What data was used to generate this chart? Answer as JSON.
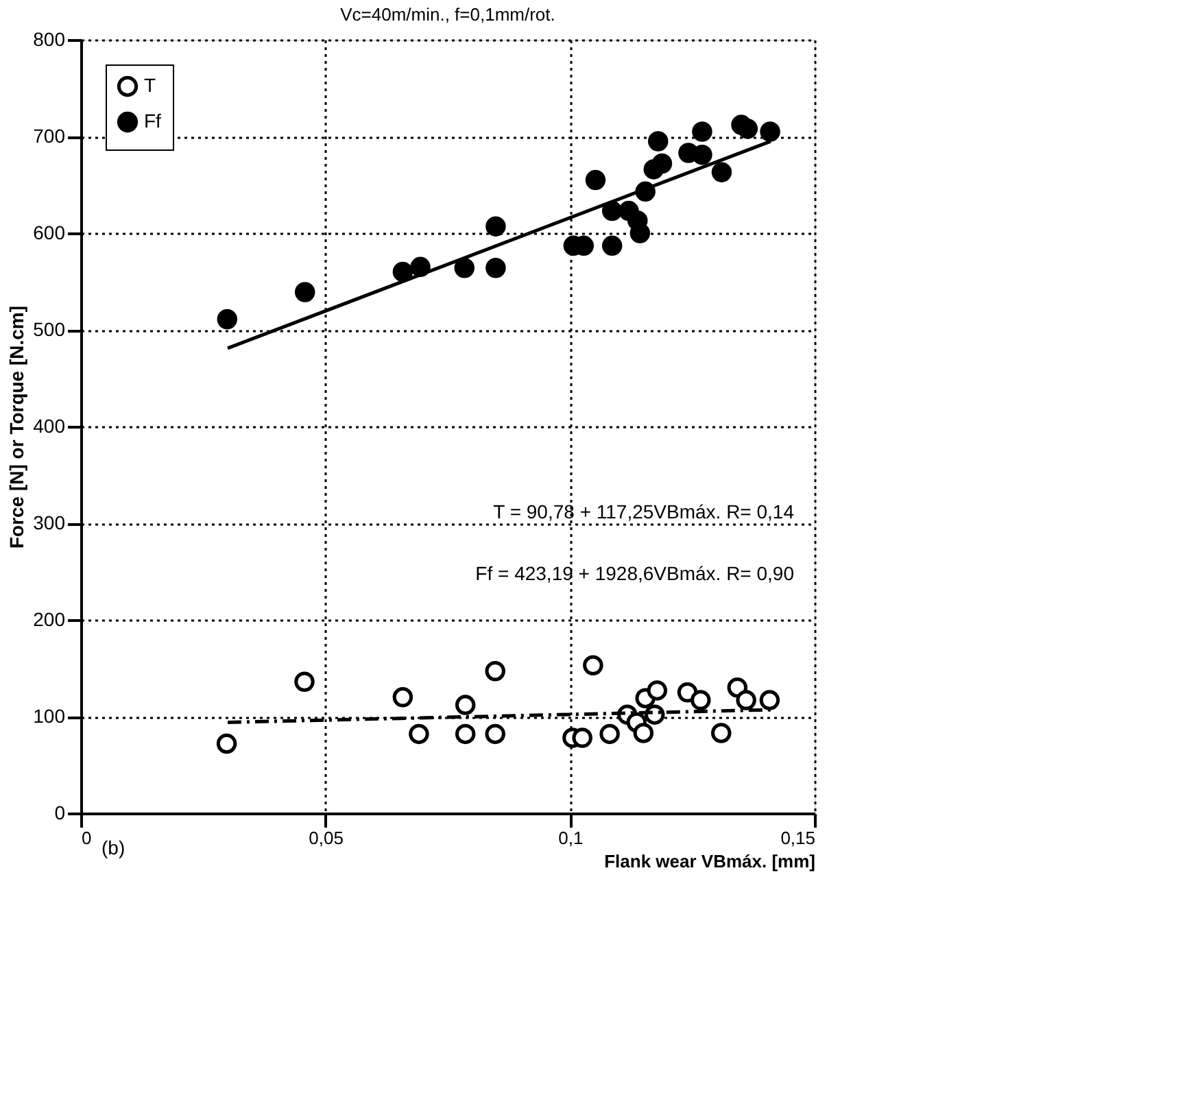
{
  "chart_data": {
    "type": "scatter",
    "title": "Vc=40m/min., f=0,1mm/rot.",
    "xlabel": "Flank wear VBmáx. [mm]",
    "ylabel": "Force [N] or Torque [N.cm]",
    "xlim": [
      0,
      0.15
    ],
    "xticks": [
      0,
      {
        "value": 0.05,
        "label": "0,05"
      },
      {
        "value": 0.1,
        "label": "0,1"
      },
      {
        "value": 0.15,
        "label": "0,15"
      }
    ],
    "ylim": [
      0,
      800
    ],
    "yticks": [
      0,
      100,
      200,
      300,
      400,
      500,
      600,
      700,
      800
    ],
    "grid": true,
    "legend": "top left",
    "marker": "circle",
    "series": [
      {
        "name": "T",
        "color": "#000000",
        "x": [
          0.0298,
          0.0457,
          0.0658,
          0.0691,
          0.0786,
          0.0786,
          0.0847,
          0.0847,
          0.1005,
          0.1025,
          0.1047,
          0.1081,
          0.1117,
          0.1136,
          0.115,
          0.1154,
          0.1173,
          0.1178,
          0.124,
          0.1267,
          0.1309,
          0.1342,
          0.136,
          0.1408
        ],
        "values": [
          72,
          136,
          120,
          82,
          112,
          82,
          147,
          82,
          78,
          78,
          153,
          82,
          102,
          94,
          83,
          119,
          102,
          127,
          125,
          117,
          83,
          130,
          117,
          117
        ]
      },
      {
        "name": "Ff",
        "color": "#000000",
        "x": [
          0.0299,
          0.0458,
          0.0658,
          0.0694,
          0.0784,
          0.0848,
          0.0848,
          0.1007,
          0.1028,
          0.1052,
          0.1086,
          0.1086,
          0.112,
          0.1138,
          0.1143,
          0.1154,
          0.1171,
          0.118,
          0.1188,
          0.1242,
          0.127,
          0.127,
          0.131,
          0.135,
          0.1363,
          0.1409
        ],
        "values": [
          511,
          539,
          560,
          565,
          564,
          607,
          564,
          587,
          587,
          655,
          623,
          587,
          623,
          613,
          600,
          643,
          666,
          695,
          672,
          683,
          705,
          681,
          663,
          712,
          708,
          705
        ]
      },
      {
        "type": "line",
        "line_style": "dashed",
        "marker": "none",
        "color": "#000000",
        "x": [
          0.03,
          0.141
        ],
        "values": [
          94,
          107
        ]
      },
      {
        "type": "line",
        "line_style": "solid",
        "marker": "none",
        "color": "#000000",
        "x": [
          0.03,
          0.141
        ],
        "values": [
          481,
          695
        ]
      }
    ],
    "annotations": [
      "T = 90,78 + 117,25VBmáx. R= 0,14",
      "Ff = 423,19 + 1928,6VBmáx. R= 0,90",
      "(b)"
    ]
  }
}
